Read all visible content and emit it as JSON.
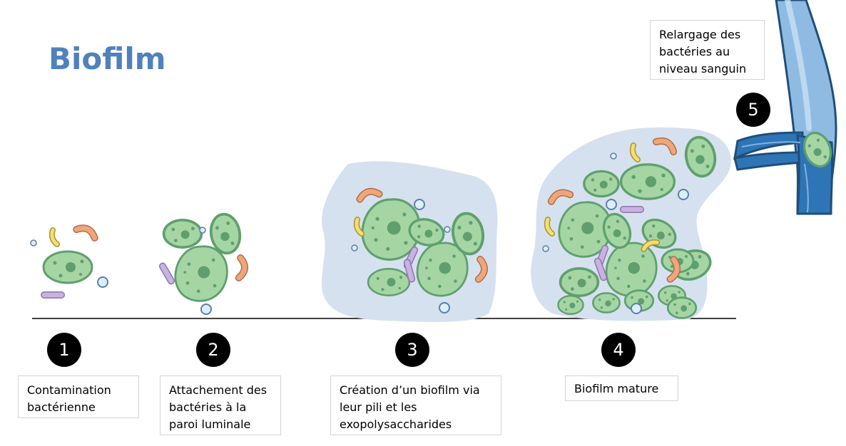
{
  "title": "Biofilm",
  "stages": [
    {
      "number": "1",
      "lines": [
        "Contamination",
        "bactérienne"
      ]
    },
    {
      "number": "2",
      "lines": [
        "Attachement des",
        "bactéries à la",
        "paroi luminale"
      ]
    },
    {
      "number": "3",
      "lines": [
        "Création d’un biofilm via",
        "leur pili et les",
        "exopolysaccharides"
      ]
    },
    {
      "number": "4",
      "lines": [
        "Biofilm mature"
      ]
    },
    {
      "number": "5",
      "lines": [
        "Relargage des",
        "bactéries au",
        "niveau sanguin"
      ]
    }
  ],
  "colors": {
    "title": "#4f81bd",
    "matrix": "#d6e1ef",
    "bacteria_fill": "#a6d5a4",
    "bacteria_stroke": "#5f9f6e",
    "vessel": "#2e75b6",
    "badge": "#000000"
  }
}
